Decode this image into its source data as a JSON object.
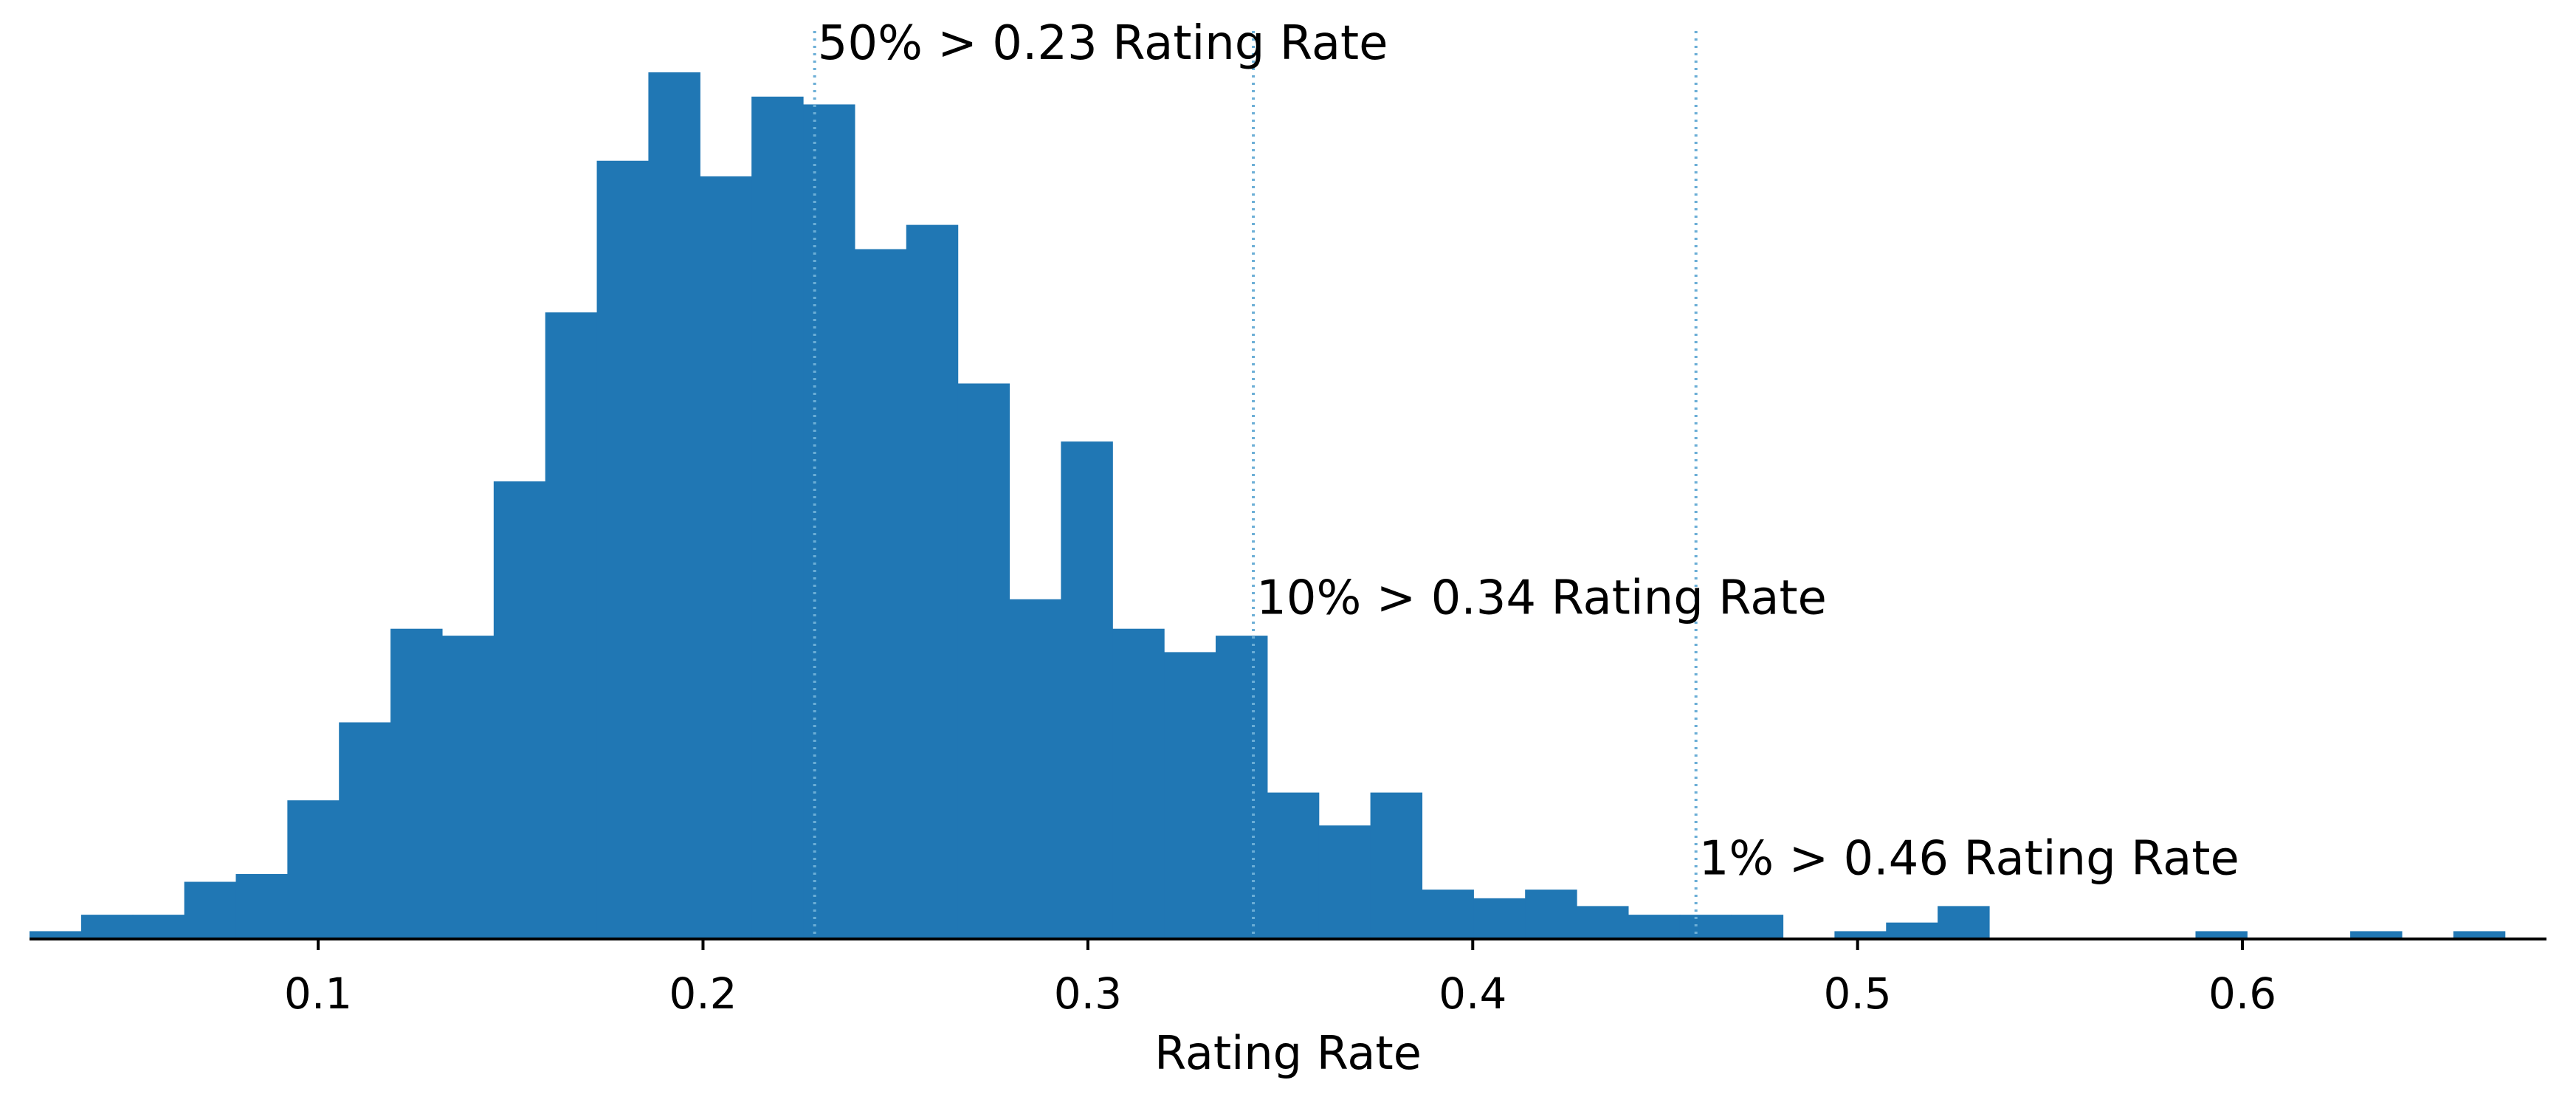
{
  "chart_data": {
    "type": "bar",
    "title": "",
    "xlabel": "Rating Rate",
    "ylabel": "",
    "xlim": [
      0.025,
      0.679
    ],
    "ylim": [
      0,
      1
    ],
    "grid": false,
    "bin_width": 0.0134,
    "bin_starts": [
      0.025,
      0.0384,
      0.0518,
      0.0652,
      0.0786,
      0.092,
      0.1054,
      0.1188,
      0.1322,
      0.1456,
      0.159,
      0.1724,
      0.1858,
      0.1992,
      0.2126,
      0.226,
      0.2394,
      0.2528,
      0.2662,
      0.2796,
      0.293,
      0.3064,
      0.3198,
      0.3332,
      0.3466,
      0.36,
      0.3734,
      0.3868,
      0.4002,
      0.4136,
      0.427,
      0.4404,
      0.4538,
      0.4672,
      0.4806,
      0.494,
      0.5074,
      0.5208,
      0.5342,
      0.5476,
      0.561,
      0.5744,
      0.5878,
      0.6012,
      0.6146,
      0.628,
      0.6414,
      0.6548
    ],
    "values": [
      0.009,
      0.028,
      0.028,
      0.066,
      0.075,
      0.16,
      0.25,
      0.358,
      0.35,
      0.528,
      0.723,
      0.898,
      1.0,
      0.88,
      0.972,
      0.963,
      0.796,
      0.824,
      0.641,
      0.392,
      0.574,
      0.358,
      0.331,
      0.35,
      0.169,
      0.131,
      0.169,
      0.057,
      0.047,
      0.057,
      0.038,
      0.028,
      0.028,
      0.028,
      0,
      0.009,
      0.019,
      0.038,
      0,
      0,
      0,
      0,
      0.009,
      0,
      0,
      0.009,
      0,
      0.009
    ],
    "x_ticks": [
      0.1,
      0.2,
      0.3,
      0.4,
      0.5,
      0.6
    ],
    "x_tick_labels": [
      "0.1",
      "0.2",
      "0.3",
      "0.4",
      "0.5",
      "0.6"
    ],
    "reference_lines": [
      {
        "x": 0.229,
        "label": "50% > 0.23 Rating Rate",
        "level": 1.0
      },
      {
        "x": 0.343,
        "label": "10% > 0.34 Rating Rate",
        "level": 0.36
      },
      {
        "x": 0.458,
        "label": "1% > 0.46 Rating Rate",
        "level": 0.059
      }
    ],
    "colors": {
      "bar": "#2077b4",
      "reference_line": "#6baed6",
      "axis": "#000000"
    }
  }
}
